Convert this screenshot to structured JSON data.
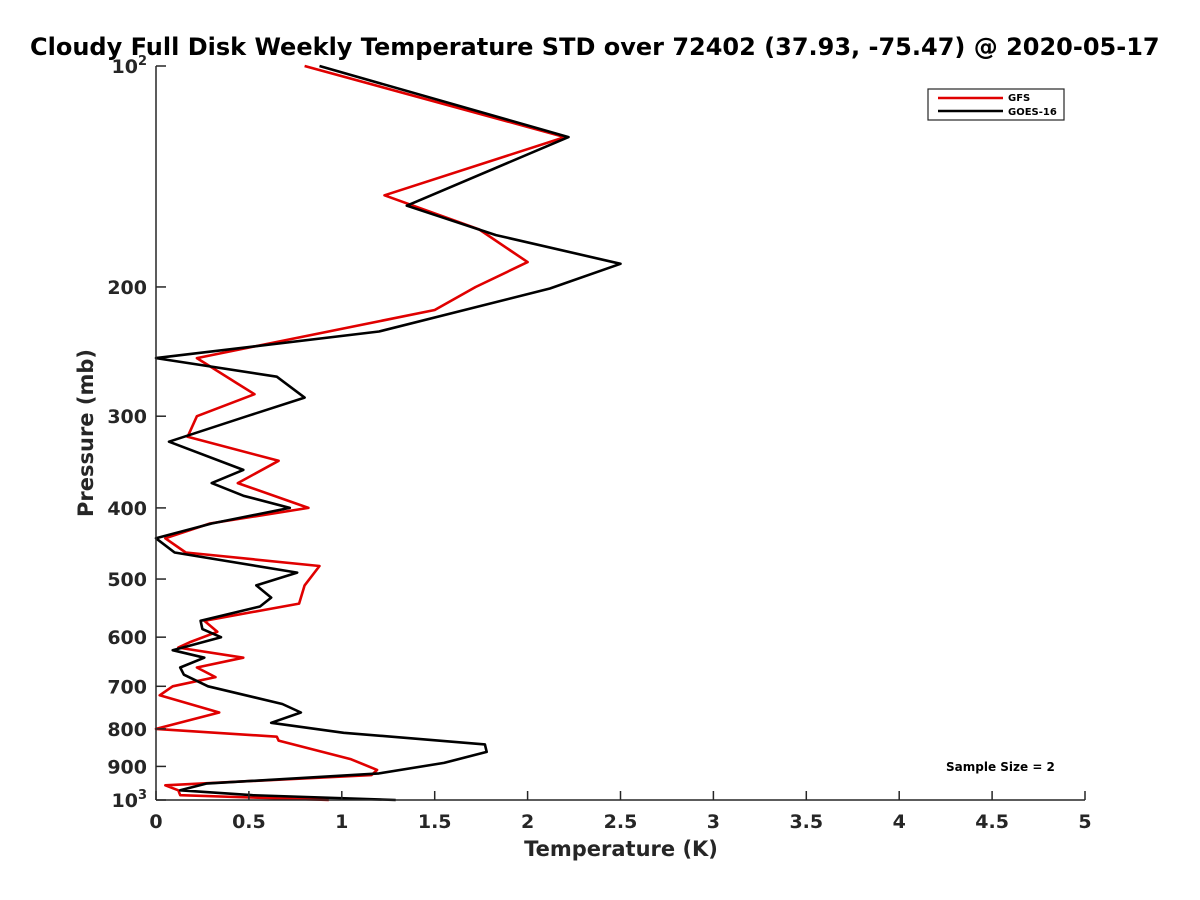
{
  "chart_data": {
    "type": "line",
    "title": "Cloudy Full Disk Weekly Temperature STD over 72402 (37.93, -75.47) @ 2020-05-17",
    "xlabel": "Temperature (K)",
    "ylabel": "Pressure (mb)",
    "xlim": [
      0,
      5
    ],
    "ylim": [
      100,
      1000
    ],
    "y_scale": "log",
    "y_reversed": true,
    "x_ticks": [
      "0",
      "0.5",
      "1",
      "1.5",
      "2",
      "2.5",
      "3",
      "3.5",
      "4",
      "4.5",
      "5"
    ],
    "y_ticks": [
      {
        "value": 100,
        "base": "10",
        "exp": "2"
      },
      {
        "value": 200,
        "label": "200"
      },
      {
        "value": 300,
        "label": "300"
      },
      {
        "value": 400,
        "label": "400"
      },
      {
        "value": 500,
        "label": "500"
      },
      {
        "value": 600,
        "label": "600"
      },
      {
        "value": 700,
        "label": "700"
      },
      {
        "value": 800,
        "label": "800"
      },
      {
        "value": 900,
        "label": "900"
      },
      {
        "value": 1000,
        "base": "10",
        "exp": "3"
      }
    ],
    "legend_position": "top-right",
    "annotation": "Sample Size = 2",
    "series": [
      {
        "name": "GFS",
        "color": "#e00000",
        "points": [
          [
            0.8,
            100
          ],
          [
            2.2,
            125
          ],
          [
            1.23,
            150
          ],
          [
            1.74,
            167
          ],
          [
            2.0,
            185
          ],
          [
            1.72,
            200
          ],
          [
            1.5,
            215
          ],
          [
            0.22,
            250
          ],
          [
            0.43,
            270
          ],
          [
            0.53,
            280
          ],
          [
            0.22,
            300
          ],
          [
            0.17,
            320
          ],
          [
            0.66,
            345
          ],
          [
            0.44,
            370
          ],
          [
            0.82,
            400
          ],
          [
            0.29,
            420
          ],
          [
            0.05,
            440
          ],
          [
            0.16,
            460
          ],
          [
            0.88,
            480
          ],
          [
            0.8,
            510
          ],
          [
            0.77,
            540
          ],
          [
            0.26,
            570
          ],
          [
            0.33,
            590
          ],
          [
            0.18,
            610
          ],
          [
            0.12,
            620
          ],
          [
            0.47,
            640
          ],
          [
            0.22,
            660
          ],
          [
            0.32,
            680
          ],
          [
            0.09,
            700
          ],
          [
            0.02,
            720
          ],
          [
            0.34,
            760
          ],
          [
            0.0,
            800
          ],
          [
            0.65,
            820
          ],
          [
            0.66,
            830
          ],
          [
            1.05,
            880
          ],
          [
            1.19,
            910
          ],
          [
            1.16,
            925
          ],
          [
            0.05,
            955
          ],
          [
            0.12,
            970
          ],
          [
            0.13,
            985
          ],
          [
            0.93,
            1000
          ]
        ]
      },
      {
        "name": "GOES-16",
        "color": "#000000",
        "points": [
          [
            0.88,
            100
          ],
          [
            2.22,
            125
          ],
          [
            1.35,
            155
          ],
          [
            1.83,
            170
          ],
          [
            2.5,
            186
          ],
          [
            2.12,
            201
          ],
          [
            1.2,
            230
          ],
          [
            0.0,
            250
          ],
          [
            0.65,
            265
          ],
          [
            0.8,
            283
          ],
          [
            0.49,
            300
          ],
          [
            0.07,
            325
          ],
          [
            0.47,
            355
          ],
          [
            0.3,
            370
          ],
          [
            0.47,
            385
          ],
          [
            0.72,
            400
          ],
          [
            0.3,
            420
          ],
          [
            0.0,
            440
          ],
          [
            0.1,
            460
          ],
          [
            0.76,
            490
          ],
          [
            0.54,
            510
          ],
          [
            0.62,
            530
          ],
          [
            0.56,
            545
          ],
          [
            0.24,
            570
          ],
          [
            0.25,
            585
          ],
          [
            0.35,
            600
          ],
          [
            0.09,
            625
          ],
          [
            0.26,
            640
          ],
          [
            0.13,
            660
          ],
          [
            0.15,
            675
          ],
          [
            0.28,
            700
          ],
          [
            0.68,
            740
          ],
          [
            0.78,
            760
          ],
          [
            0.62,
            785
          ],
          [
            1.01,
            810
          ],
          [
            1.77,
            840
          ],
          [
            1.78,
            860
          ],
          [
            1.55,
            890
          ],
          [
            1.2,
            920
          ],
          [
            0.27,
            950
          ],
          [
            0.13,
            970
          ],
          [
            0.52,
            985
          ],
          [
            1.29,
            1000
          ]
        ]
      }
    ]
  }
}
